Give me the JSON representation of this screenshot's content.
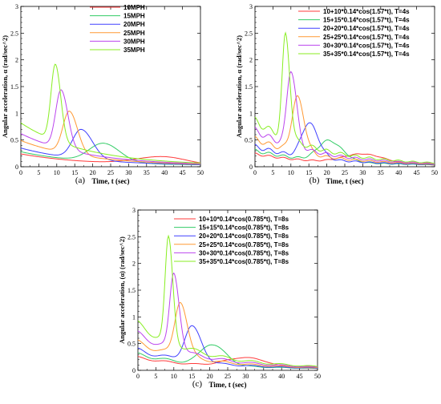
{
  "chart_data": [
    {
      "type": "line",
      "caption": "(a)",
      "xlabel": "Time, t (sec)",
      "ylabel": "Angular acceleration, α (rad/sec^2)",
      "xlim": [
        0,
        50
      ],
      "ylim": [
        0,
        3
      ],
      "x_ticks": [
        "0",
        "5",
        "10",
        "15",
        "20",
        "25",
        "30",
        "35",
        "40",
        "45",
        "50"
      ],
      "y_ticks": [
        "0",
        "0.5",
        "1",
        "1.5",
        "2",
        "2.5",
        "3"
      ],
      "legend_position": "top-right",
      "series": [
        {
          "name": "10MPH",
          "color": "#ff3b3b",
          "peak_x": 39.5,
          "peak_y": 0.17,
          "base_start": 0.22,
          "base_end": 0.02,
          "width_left": 7.5,
          "width_right": 6.5
        },
        {
          "name": "15MPH",
          "color": "#33cc66",
          "peak_x": 23.0,
          "peak_y": 0.42,
          "base_start": 0.26,
          "base_end": 0.02,
          "width_left": 4.0,
          "width_right": 4.5
        },
        {
          "name": "20MPH",
          "color": "#4040ff",
          "peak_x": 16.8,
          "peak_y": 0.68,
          "base_start": 0.33,
          "base_end": 0.02,
          "width_left": 2.4,
          "width_right": 3.2
        },
        {
          "name": "25MPH",
          "color": "#ff9933",
          "peak_x": 13.5,
          "peak_y": 1.02,
          "base_start": 0.47,
          "base_end": 0.02,
          "width_left": 1.8,
          "width_right": 2.3
        },
        {
          "name": "30MPH",
          "color": "#bb44ee",
          "peak_x": 11.2,
          "peak_y": 1.42,
          "base_start": 0.6,
          "base_end": 0.02,
          "width_left": 1.5,
          "width_right": 1.9
        },
        {
          "name": "35MPH",
          "color": "#88ee22",
          "peak_x": 9.6,
          "peak_y": 1.9,
          "base_start": 0.8,
          "base_end": 0.02,
          "width_left": 1.2,
          "width_right": 1.5
        }
      ]
    },
    {
      "type": "line",
      "caption": "(b)",
      "xlabel": "Time, t (sec)",
      "ylabel": "Angular acceleration, α (rad/sec^2)",
      "xlim": [
        0,
        50
      ],
      "ylim": [
        0,
        3
      ],
      "x_ticks": [
        "0",
        "5",
        "10",
        "15",
        "20",
        "25",
        "30",
        "35",
        "40",
        "45",
        "50"
      ],
      "y_ticks": [
        "0",
        "0.5",
        "1",
        "1.5",
        "2",
        "2.5",
        "3"
      ],
      "legend_position": "top-right",
      "series": [
        {
          "name": "10+10*0.14*cos(1.57*t), T=4s",
          "color": "#ff3b3b",
          "peak_x": 30.0,
          "peak_y": 0.22,
          "base_start": 0.22,
          "base_end": 0.02,
          "width_left": 5.5,
          "width_right": 6.0,
          "ripple": 0.02,
          "omega": 1.57
        },
        {
          "name": "15+15*0.14*cos(1.57*t), T=4s",
          "color": "#33cc66",
          "peak_x": 20.5,
          "peak_y": 0.47,
          "base_start": 0.28,
          "base_end": 0.02,
          "width_left": 3.0,
          "width_right": 3.8,
          "ripple": 0.03,
          "omega": 1.57
        },
        {
          "name": "20+20*0.14*cos(1.57*t), T=4s",
          "color": "#4040ff",
          "peak_x": 15.0,
          "peak_y": 0.8,
          "base_start": 0.36,
          "base_end": 0.02,
          "width_left": 2.0,
          "width_right": 2.6,
          "ripple": 0.04,
          "omega": 1.57
        },
        {
          "name": "25+25*0.14*cos(1.57*t), T=4s",
          "color": "#ff9933",
          "peak_x": 11.8,
          "peak_y": 1.28,
          "base_start": 0.5,
          "base_end": 0.02,
          "width_left": 1.5,
          "width_right": 1.9,
          "ripple": 0.05,
          "omega": 1.57
        },
        {
          "name": "30+30*0.14*cos(1.57*t), T=4s",
          "color": "#bb44ee",
          "peak_x": 10.0,
          "peak_y": 1.8,
          "base_start": 0.66,
          "base_end": 0.02,
          "width_left": 1.1,
          "width_right": 1.5,
          "ripple": 0.06,
          "omega": 1.57
        },
        {
          "name": "35+35*0.14*cos(1.57*t), T=4s",
          "color": "#88ee22",
          "peak_x": 8.5,
          "peak_y": 2.45,
          "base_start": 0.84,
          "base_end": 0.02,
          "width_left": 0.9,
          "width_right": 1.2,
          "ripple": 0.07,
          "omega": 1.57
        }
      ]
    },
    {
      "type": "line",
      "caption": "(c)",
      "xlabel": "Time, t (sec)",
      "ylabel": "Angular acceleration, (α) (rad/sec^2)",
      "xlim": [
        0,
        50
      ],
      "ylim": [
        0,
        3
      ],
      "x_ticks": [
        "0",
        "5",
        "10",
        "15",
        "20",
        "25",
        "30",
        "35",
        "40",
        "45",
        "50"
      ],
      "y_ticks": [
        "0",
        "0.5",
        "1",
        "1.5",
        "2",
        "2.5",
        "3"
      ],
      "legend_position": "top-right",
      "series": [
        {
          "name": "10+10*0.14*cos(0.785*t), T=8s",
          "color": "#ff3b3b",
          "peak_x": 30.0,
          "peak_y": 0.22,
          "base_start": 0.22,
          "base_end": 0.02,
          "width_left": 5.5,
          "width_right": 6.0,
          "ripple": 0.02,
          "omega": 0.785
        },
        {
          "name": "15+15*0.14*cos(0.785*t), T=8s",
          "color": "#33cc66",
          "peak_x": 20.5,
          "peak_y": 0.47,
          "base_start": 0.28,
          "base_end": 0.02,
          "width_left": 3.0,
          "width_right": 3.8,
          "ripple": 0.03,
          "omega": 0.785
        },
        {
          "name": "20+20*0.14*cos(0.785*t), T=8s",
          "color": "#4040ff",
          "peak_x": 15.0,
          "peak_y": 0.8,
          "base_start": 0.36,
          "base_end": 0.02,
          "width_left": 2.0,
          "width_right": 2.6,
          "ripple": 0.04,
          "omega": 0.785
        },
        {
          "name": "25+25*0.14*cos(0.785*t), T=8s",
          "color": "#ff9933",
          "peak_x": 11.8,
          "peak_y": 1.28,
          "base_start": 0.5,
          "base_end": 0.02,
          "width_left": 1.5,
          "width_right": 1.9,
          "ripple": 0.05,
          "omega": 0.785
        },
        {
          "name": "30+30*0.14*cos(0.785*t), T=8s",
          "color": "#bb44ee",
          "peak_x": 10.0,
          "peak_y": 1.8,
          "base_start": 0.66,
          "base_end": 0.02,
          "width_left": 1.1,
          "width_right": 1.5,
          "ripple": 0.06,
          "omega": 0.785
        },
        {
          "name": "35+35*0.14*cos(0.785*t), T=8s",
          "color": "#88ee22",
          "peak_x": 8.5,
          "peak_y": 2.45,
          "base_start": 0.84,
          "base_end": 0.02,
          "width_left": 0.9,
          "width_right": 1.2,
          "ripple": 0.07,
          "omega": 0.785
        }
      ]
    }
  ]
}
